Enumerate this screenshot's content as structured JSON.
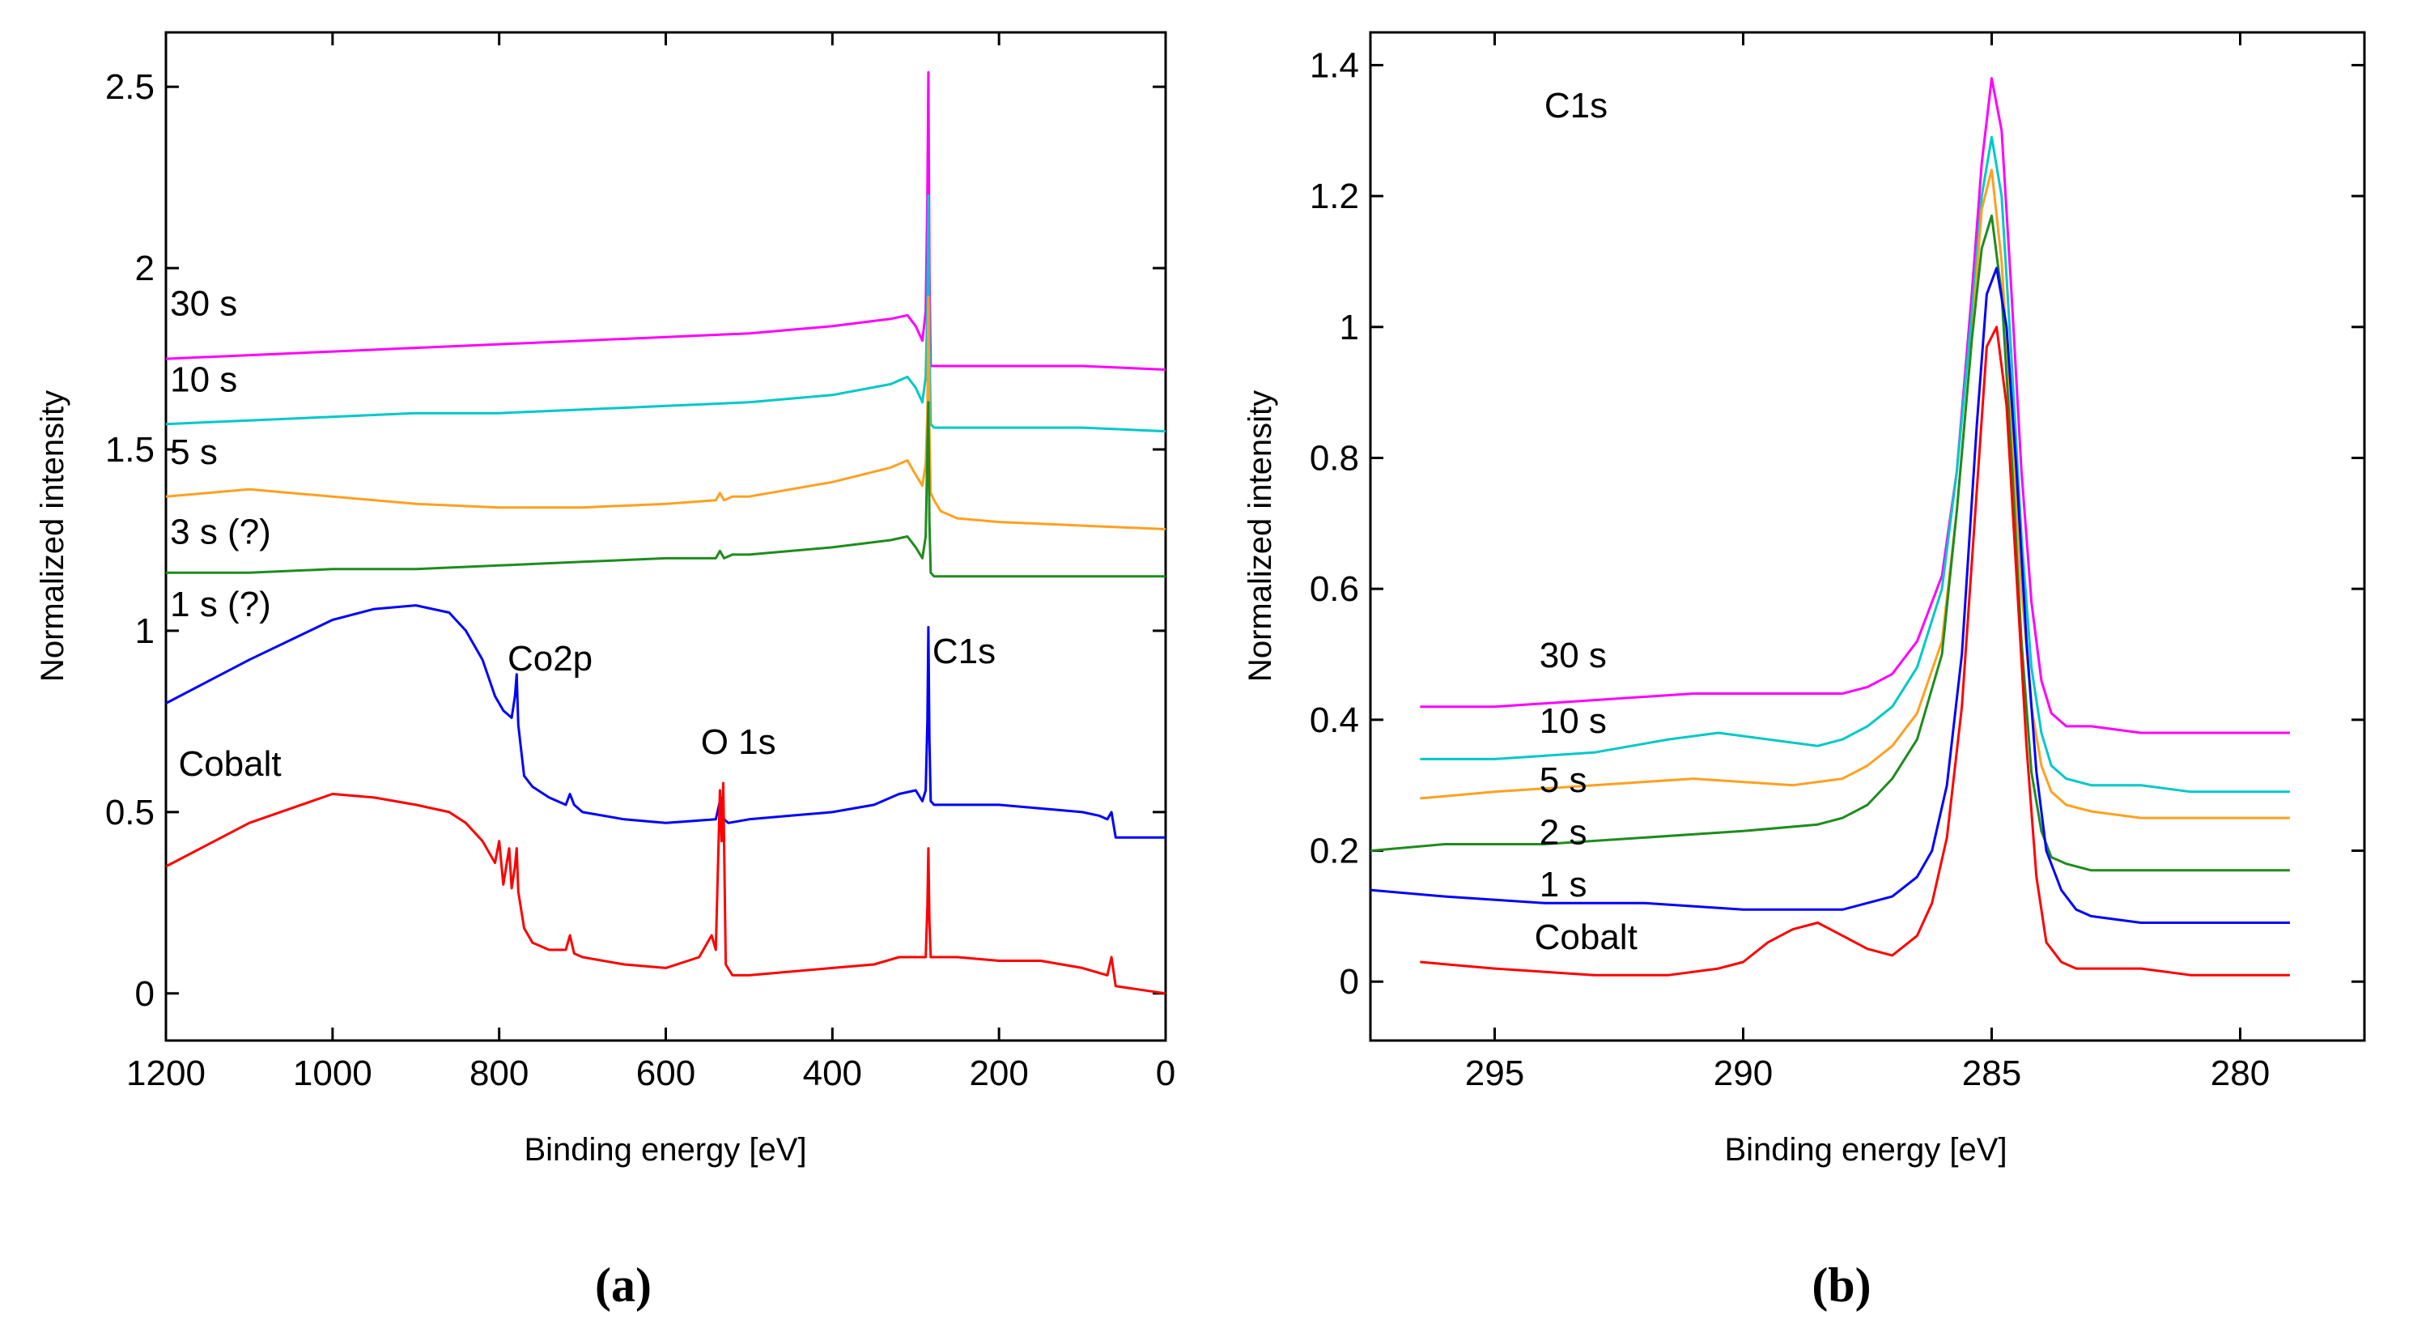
{
  "chart_data": [
    {
      "id": "a",
      "type": "line",
      "panel_label": "(a)",
      "xlabel": "Binding energy [eV]",
      "ylabel": "Normalized intensity",
      "xlim": [
        1200,
        0
      ],
      "ylim": [
        -0.13,
        2.65
      ],
      "x_ticks": [
        1200,
        1000,
        800,
        600,
        400,
        200,
        0
      ],
      "y_ticks": [
        0,
        0.5,
        1,
        1.5,
        2,
        2.5
      ],
      "y_tick_labels": [
        "0",
        "0.5",
        "1",
        "1.5",
        "2",
        "2.5"
      ],
      "grid": false,
      "series": [
        {
          "name": "30 s",
          "color": "#ff00ff",
          "x": [
            1200,
            1100,
            1000,
            900,
            800,
            700,
            600,
            500,
            400,
            330,
            310,
            300,
            292,
            288,
            286,
            284.8,
            283.5,
            282,
            278,
            270,
            250,
            200,
            100,
            0
          ],
          "y": [
            1.75,
            1.76,
            1.77,
            1.78,
            1.79,
            1.8,
            1.81,
            1.82,
            1.84,
            1.86,
            1.87,
            1.84,
            1.8,
            1.88,
            2.2,
            2.54,
            2.0,
            1.73,
            1.73,
            1.73,
            1.73,
            1.73,
            1.73,
            1.72
          ]
        },
        {
          "name": "10 s",
          "color": "#00c8c8",
          "x": [
            1200,
            1100,
            1000,
            900,
            800,
            700,
            600,
            500,
            400,
            330,
            310,
            300,
            292,
            288,
            286,
            284.8,
            283.5,
            282,
            278,
            270,
            250,
            200,
            100,
            0
          ],
          "y": [
            1.57,
            1.58,
            1.59,
            1.6,
            1.6,
            1.61,
            1.62,
            1.63,
            1.65,
            1.68,
            1.7,
            1.67,
            1.63,
            1.7,
            1.9,
            2.2,
            1.8,
            1.57,
            1.56,
            1.56,
            1.56,
            1.56,
            1.56,
            1.55
          ]
        },
        {
          "name": "5 s",
          "color": "#ffa020",
          "x": [
            1200,
            1100,
            1000,
            900,
            800,
            700,
            600,
            540,
            535,
            530,
            520,
            500,
            400,
            330,
            310,
            300,
            292,
            288,
            286,
            284.8,
            283.5,
            282,
            278,
            270,
            250,
            200,
            100,
            0
          ],
          "y": [
            1.37,
            1.39,
            1.37,
            1.35,
            1.34,
            1.34,
            1.35,
            1.36,
            1.38,
            1.36,
            1.37,
            1.37,
            1.41,
            1.45,
            1.47,
            1.43,
            1.4,
            1.46,
            1.6,
            1.92,
            1.55,
            1.38,
            1.36,
            1.33,
            1.31,
            1.3,
            1.29,
            1.28
          ]
        },
        {
          "name": "3 s (?)",
          "color": "#1e8c1e",
          "x": [
            1200,
            1100,
            1000,
            900,
            800,
            700,
            600,
            540,
            535,
            530,
            520,
            500,
            400,
            330,
            310,
            300,
            292,
            288,
            286,
            284.8,
            283.5,
            282,
            278,
            270,
            250,
            200,
            100,
            0
          ],
          "y": [
            1.16,
            1.16,
            1.17,
            1.17,
            1.18,
            1.19,
            1.2,
            1.2,
            1.22,
            1.2,
            1.21,
            1.21,
            1.23,
            1.25,
            1.26,
            1.23,
            1.2,
            1.26,
            1.5,
            1.63,
            1.3,
            1.16,
            1.15,
            1.15,
            1.15,
            1.15,
            1.15,
            1.15
          ]
        },
        {
          "name": "1 s (?)",
          "color": "#0000ff",
          "x": [
            1200,
            1100,
            1000,
            950,
            900,
            860,
            840,
            820,
            805,
            795,
            785,
            781,
            779,
            777,
            770,
            760,
            740,
            720,
            715,
            710,
            700,
            650,
            600,
            540,
            534,
            530,
            525,
            500,
            450,
            400,
            350,
            320,
            300,
            292,
            288,
            286,
            284.8,
            283.5,
            282,
            278,
            270,
            250,
            200,
            150,
            100,
            80,
            70,
            65,
            60,
            0
          ],
          "y": [
            0.8,
            0.92,
            1.03,
            1.06,
            1.07,
            1.05,
            1.0,
            0.92,
            0.82,
            0.78,
            0.76,
            0.82,
            0.88,
            0.74,
            0.6,
            0.57,
            0.54,
            0.52,
            0.55,
            0.52,
            0.5,
            0.48,
            0.47,
            0.48,
            0.54,
            0.48,
            0.47,
            0.48,
            0.49,
            0.5,
            0.52,
            0.55,
            0.56,
            0.53,
            0.56,
            0.75,
            1.01,
            0.7,
            0.53,
            0.52,
            0.52,
            0.52,
            0.52,
            0.51,
            0.5,
            0.49,
            0.48,
            0.5,
            0.43,
            0.43
          ]
        },
        {
          "name": "Cobalt",
          "color": "#ff0000",
          "x": [
            1200,
            1100,
            1000,
            950,
            900,
            860,
            840,
            820,
            805,
            800,
            795,
            788,
            785,
            781,
            779,
            777,
            770,
            760,
            740,
            720,
            715,
            710,
            700,
            650,
            600,
            560,
            545,
            540,
            535,
            533,
            531,
            528,
            520,
            500,
            450,
            400,
            350,
            320,
            300,
            288,
            286,
            284.8,
            283.5,
            282,
            278,
            270,
            250,
            200,
            150,
            100,
            70,
            65,
            60,
            30,
            0
          ],
          "y": [
            0.35,
            0.47,
            0.55,
            0.54,
            0.52,
            0.5,
            0.47,
            0.42,
            0.36,
            0.42,
            0.3,
            0.4,
            0.29,
            0.35,
            0.4,
            0.28,
            0.18,
            0.14,
            0.12,
            0.12,
            0.16,
            0.11,
            0.1,
            0.08,
            0.07,
            0.1,
            0.16,
            0.12,
            0.56,
            0.42,
            0.58,
            0.08,
            0.05,
            0.05,
            0.06,
            0.07,
            0.08,
            0.1,
            0.1,
            0.1,
            0.24,
            0.4,
            0.2,
            0.1,
            0.1,
            0.1,
            0.1,
            0.09,
            0.09,
            0.07,
            0.05,
            0.1,
            0.02,
            0.01,
            0.0
          ]
        }
      ],
      "annotations": [
        {
          "text": "30 s",
          "x": 1195,
          "y": 1.87,
          "color": "#000000"
        },
        {
          "text": "10 s",
          "x": 1195,
          "y": 1.66,
          "color": "#000000"
        },
        {
          "text": "5 s",
          "x": 1195,
          "y": 1.46,
          "color": "#000000"
        },
        {
          "text": "3 s (?)",
          "x": 1195,
          "y": 1.24,
          "color": "#000000"
        },
        {
          "text": "1 s (?)",
          "x": 1195,
          "y": 1.04,
          "color": "#000000"
        },
        {
          "text": "Cobalt",
          "x": 1185,
          "y": 0.6,
          "color": "#000000"
        },
        {
          "text": "Co2p",
          "x": 790,
          "y": 0.89,
          "color": "#000000"
        },
        {
          "text": "O 1s",
          "x": 558,
          "y": 0.66,
          "color": "#000000"
        },
        {
          "text": "C1s",
          "x": 280,
          "y": 0.91,
          "color": "#000000"
        }
      ]
    },
    {
      "id": "b",
      "type": "line",
      "panel_label": "(b)",
      "xlabel": "Binding energy [eV]",
      "ylabel": "Normalized intensity",
      "xlim": [
        297.5,
        277.5
      ],
      "ylim": [
        -0.09,
        1.45
      ],
      "x_ticks": [
        295,
        290,
        285,
        280
      ],
      "y_ticks": [
        0,
        0.2,
        0.4,
        0.6,
        0.8,
        1,
        1.2,
        1.4
      ],
      "y_tick_labels": [
        "0",
        "0.2",
        "0.4",
        "0.6",
        "0.8",
        "1",
        "1.2",
        "1.4"
      ],
      "grid": false,
      "series": [
        {
          "name": "30 s",
          "color": "#ff00ff",
          "x": [
            296.5,
            295,
            293,
            291,
            289,
            288,
            287.5,
            287,
            286.5,
            286,
            285.7,
            285.4,
            285.2,
            285.0,
            284.8,
            284.6,
            284.4,
            284.2,
            284.0,
            283.8,
            283.5,
            283,
            282,
            281,
            280,
            279
          ],
          "y": [
            0.42,
            0.42,
            0.43,
            0.44,
            0.44,
            0.44,
            0.45,
            0.47,
            0.52,
            0.62,
            0.78,
            1.05,
            1.25,
            1.38,
            1.3,
            1.05,
            0.78,
            0.58,
            0.46,
            0.41,
            0.39,
            0.39,
            0.38,
            0.38,
            0.38,
            0.38
          ]
        },
        {
          "name": "10 s",
          "color": "#00c8c8",
          "x": [
            296.5,
            295,
            293,
            291.5,
            290.5,
            289.5,
            288.5,
            288,
            287.5,
            287,
            286.5,
            286,
            285.7,
            285.4,
            285.2,
            285.0,
            284.8,
            284.6,
            284.4,
            284.2,
            284.0,
            283.8,
            283.5,
            283,
            282,
            281,
            280,
            279
          ],
          "y": [
            0.34,
            0.34,
            0.35,
            0.37,
            0.38,
            0.37,
            0.36,
            0.37,
            0.39,
            0.42,
            0.48,
            0.6,
            0.78,
            1.02,
            1.2,
            1.29,
            1.2,
            0.95,
            0.68,
            0.48,
            0.38,
            0.33,
            0.31,
            0.3,
            0.3,
            0.29,
            0.29,
            0.29
          ]
        },
        {
          "name": "5 s",
          "color": "#ffa020",
          "x": [
            296.5,
            295,
            293,
            291,
            289,
            288,
            287.5,
            287,
            286.5,
            286,
            285.7,
            285.4,
            285.2,
            285.0,
            284.8,
            284.6,
            284.4,
            284.2,
            284.0,
            283.8,
            283.5,
            283,
            282,
            281,
            280,
            279
          ],
          "y": [
            0.28,
            0.29,
            0.3,
            0.31,
            0.3,
            0.31,
            0.33,
            0.36,
            0.41,
            0.52,
            0.72,
            0.98,
            1.18,
            1.24,
            1.1,
            0.85,
            0.6,
            0.42,
            0.33,
            0.29,
            0.27,
            0.26,
            0.25,
            0.25,
            0.25,
            0.25
          ]
        },
        {
          "name": "2 s",
          "color": "#1e8c1e",
          "x": [
            297.5,
            296,
            294,
            292,
            290,
            288.5,
            288,
            287.5,
            287,
            286.5,
            286,
            285.7,
            285.4,
            285.2,
            285.0,
            284.8,
            284.6,
            284.4,
            284.2,
            284.0,
            283.8,
            283.5,
            283,
            282,
            281,
            280,
            279
          ],
          "y": [
            0.2,
            0.21,
            0.21,
            0.22,
            0.23,
            0.24,
            0.25,
            0.27,
            0.31,
            0.37,
            0.5,
            0.72,
            0.98,
            1.12,
            1.17,
            1.05,
            0.8,
            0.52,
            0.32,
            0.23,
            0.19,
            0.18,
            0.17,
            0.17,
            0.17,
            0.17,
            0.17
          ]
        },
        {
          "name": "1 s",
          "color": "#0000ff",
          "x": [
            297.5,
            296,
            294,
            292,
            290,
            288.5,
            288,
            287.5,
            287,
            286.5,
            286.2,
            285.9,
            285.6,
            285.3,
            285.1,
            284.9,
            284.7,
            284.5,
            284.3,
            284.1,
            283.9,
            283.6,
            283.3,
            283,
            282,
            281,
            280,
            279
          ],
          "y": [
            0.14,
            0.13,
            0.12,
            0.12,
            0.11,
            0.11,
            0.11,
            0.12,
            0.13,
            0.16,
            0.2,
            0.3,
            0.5,
            0.85,
            1.05,
            1.09,
            1.0,
            0.78,
            0.52,
            0.32,
            0.2,
            0.14,
            0.11,
            0.1,
            0.09,
            0.09,
            0.09,
            0.09
          ]
        },
        {
          "name": "Cobalt",
          "color": "#ff0000",
          "x": [
            296.5,
            295,
            293,
            291.5,
            290.5,
            290,
            289.5,
            289,
            288.5,
            288,
            287.5,
            287,
            286.5,
            286.2,
            285.9,
            285.6,
            285.3,
            285.1,
            284.9,
            284.7,
            284.5,
            284.3,
            284.1,
            283.9,
            283.6,
            283.3,
            283,
            282,
            281,
            280,
            279
          ],
          "y": [
            0.03,
            0.02,
            0.01,
            0.01,
            0.02,
            0.03,
            0.06,
            0.08,
            0.09,
            0.07,
            0.05,
            0.04,
            0.07,
            0.12,
            0.22,
            0.42,
            0.75,
            0.97,
            1.0,
            0.88,
            0.62,
            0.36,
            0.16,
            0.06,
            0.03,
            0.02,
            0.02,
            0.02,
            0.01,
            0.01,
            0.01
          ]
        }
      ],
      "annotations": [
        {
          "text": "C1s",
          "x": 294.0,
          "y": 1.32,
          "color": "#000000"
        },
        {
          "text": "30 s",
          "x": 294.1,
          "y": 0.48,
          "color": "#000000"
        },
        {
          "text": "10 s",
          "x": 294.1,
          "y": 0.38,
          "color": "#000000"
        },
        {
          "text": "5 s",
          "x": 294.1,
          "y": 0.29,
          "color": "#000000"
        },
        {
          "text": "2 s",
          "x": 294.1,
          "y": 0.21,
          "color": "#000000"
        },
        {
          "text": "1 s",
          "x": 294.1,
          "y": 0.13,
          "color": "#000000"
        },
        {
          "text": "Cobalt",
          "x": 294.2,
          "y": 0.05,
          "color": "#000000"
        }
      ]
    }
  ]
}
